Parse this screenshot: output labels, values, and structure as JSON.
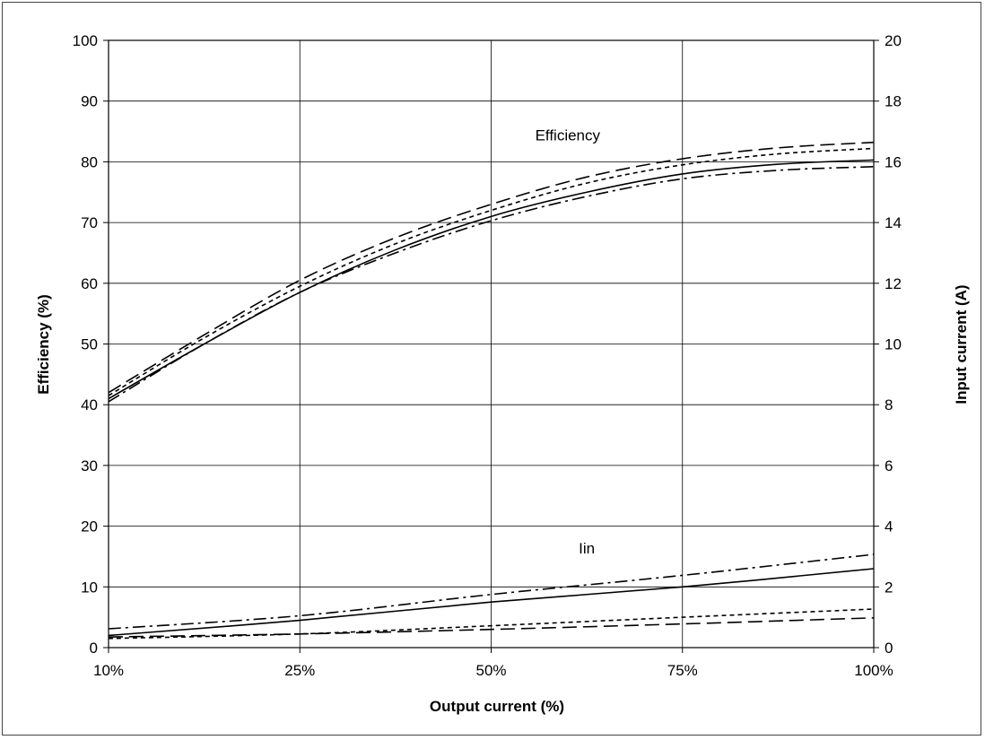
{
  "chart_data": {
    "type": "line",
    "x_axis": {
      "label": "Output current (%)",
      "categories": [
        "10%",
        "25%",
        "50%",
        "75%",
        "100%"
      ]
    },
    "y_axis_left": {
      "label": "Efficiency (%)",
      "ylim": [
        0,
        100
      ],
      "ticks": [
        0,
        10,
        20,
        30,
        40,
        50,
        60,
        70,
        80,
        90,
        100
      ]
    },
    "y_axis_right": {
      "label": "Input current (A)",
      "ylim": [
        0,
        20
      ],
      "ticks": [
        0,
        2,
        4,
        6,
        8,
        10,
        12,
        14,
        16,
        18,
        20
      ]
    },
    "grid": true,
    "annotations": [
      {
        "text": "Efficiency",
        "x": 2.4,
        "y": 83.5
      },
      {
        "text": "Iin",
        "x": 2.5,
        "y": 15.5
      }
    ],
    "series": [
      {
        "group": "efficiency",
        "axis": "left",
        "style": "solid",
        "x": [
          0,
          0.5,
          1,
          1.5,
          2,
          2.5,
          3,
          3.5,
          4
        ],
        "values": [
          41,
          50,
          58.5,
          65.5,
          71,
          75,
          78,
          79.6,
          80.3
        ]
      },
      {
        "group": "efficiency",
        "axis": "left",
        "style": "long-dash",
        "x": [
          0,
          0.5,
          1,
          1.5,
          2,
          2.5,
          3,
          3.5,
          4
        ],
        "values": [
          42,
          51.5,
          60.5,
          67.5,
          73,
          77.5,
          80.5,
          82.3,
          83.2
        ]
      },
      {
        "group": "efficiency",
        "axis": "left",
        "style": "short-dash",
        "x": [
          0,
          0.5,
          1,
          1.5,
          2,
          2.5,
          3,
          3.5,
          4
        ],
        "values": [
          41.5,
          51,
          59.5,
          66.5,
          72,
          76.5,
          79.5,
          81.3,
          82.2
        ]
      },
      {
        "group": "efficiency",
        "axis": "left",
        "style": "dash-dot",
        "x": [
          0,
          0.5,
          1,
          1.5,
          2,
          2.5,
          3,
          3.5,
          4
        ],
        "values": [
          40.5,
          50,
          58.5,
          65,
          70.3,
          74.3,
          77.2,
          78.6,
          79.2
        ]
      },
      {
        "group": "input-current",
        "axis": "right",
        "style": "solid",
        "x": [
          0,
          1,
          2,
          3,
          4
        ],
        "values": [
          0.4,
          0.9,
          1.5,
          2.0,
          2.6
        ]
      },
      {
        "group": "input-current",
        "axis": "right",
        "style": "long-dash",
        "x": [
          0,
          1,
          2,
          3,
          4
        ],
        "values": [
          0.35,
          0.45,
          0.6,
          0.78,
          0.98
        ]
      },
      {
        "group": "input-current",
        "axis": "right",
        "style": "short-dash",
        "x": [
          0,
          1,
          2,
          3,
          4
        ],
        "values": [
          0.3,
          0.45,
          0.72,
          1.0,
          1.27
        ]
      },
      {
        "group": "input-current",
        "axis": "right",
        "style": "dash-dot",
        "x": [
          0,
          1,
          2,
          3,
          4
        ],
        "values": [
          0.62,
          1.05,
          1.75,
          2.38,
          3.07
        ]
      }
    ]
  }
}
